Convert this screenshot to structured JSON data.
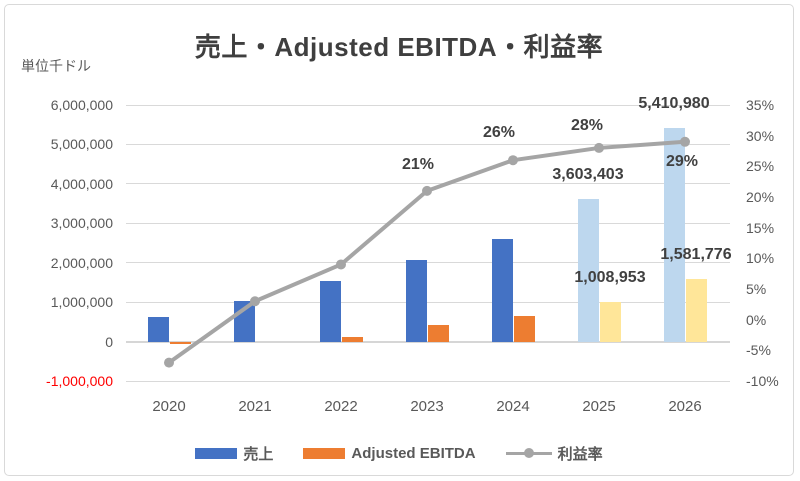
{
  "chart_data": {
    "type": "bar",
    "subtype": "combo-bar-line-dual-axis",
    "title": "売上・Adjusted EBITDA・利益率",
    "unit_label": "単位千ドル",
    "categories": [
      "2020",
      "2021",
      "2022",
      "2023",
      "2024",
      "2025",
      "2026"
    ],
    "series": [
      {
        "name": "売上",
        "type": "bar",
        "axis": "left",
        "color": "#4472C4",
        "forecast_color": "#BDD7EE",
        "forecast_from_index": 5,
        "values": [
          620000,
          1020000,
          1540000,
          2080000,
          2600000,
          3603403,
          5410980
        ],
        "labels": [
          null,
          null,
          null,
          null,
          null,
          "3,603,403",
          "5,410,980"
        ]
      },
      {
        "name": "Adjusted EBITDA",
        "type": "bar",
        "axis": "left",
        "color": "#ED7D31",
        "forecast_color": "#FFE699",
        "forecast_from_index": 5,
        "values": [
          -60000,
          0,
          120000,
          420000,
          650000,
          1008953,
          1581776
        ],
        "labels": [
          null,
          null,
          null,
          null,
          null,
          "1,008,953",
          "1,581,776"
        ]
      },
      {
        "name": "利益率",
        "type": "line",
        "axis": "right",
        "color": "#A5A5A5",
        "values": [
          -7,
          3,
          9,
          21,
          26,
          28,
          29
        ],
        "labels": [
          null,
          null,
          null,
          "21%",
          "26%",
          "28%",
          "29%"
        ]
      }
    ],
    "left_axis": {
      "min": -1000000,
      "max": 6000000,
      "ticks": [
        "6,000,000",
        "5,000,000",
        "4,000,000",
        "3,000,000",
        "2,000,000",
        "1,000,000",
        "0",
        "-1,000,000"
      ],
      "negative_tick_color": "#FF0000"
    },
    "right_axis": {
      "min": -10,
      "max": 35,
      "ticks": [
        "35%",
        "30%",
        "25%",
        "20%",
        "15%",
        "10%",
        "5%",
        "0%",
        "-5%",
        "-10%"
      ]
    },
    "legend": [
      {
        "label": "売上",
        "color": "#4472C4",
        "marker": "bar"
      },
      {
        "label": "Adjusted EBITDA",
        "color": "#ED7D31",
        "marker": "bar"
      },
      {
        "label": "利益率",
        "color": "#A5A5A5",
        "marker": "line"
      }
    ],
    "layout_hints": {
      "grid": true,
      "legend_position": "bottom",
      "gridline_color": "#D9D9D9",
      "text_color": "#595959",
      "label_color": "#404040"
    }
  }
}
